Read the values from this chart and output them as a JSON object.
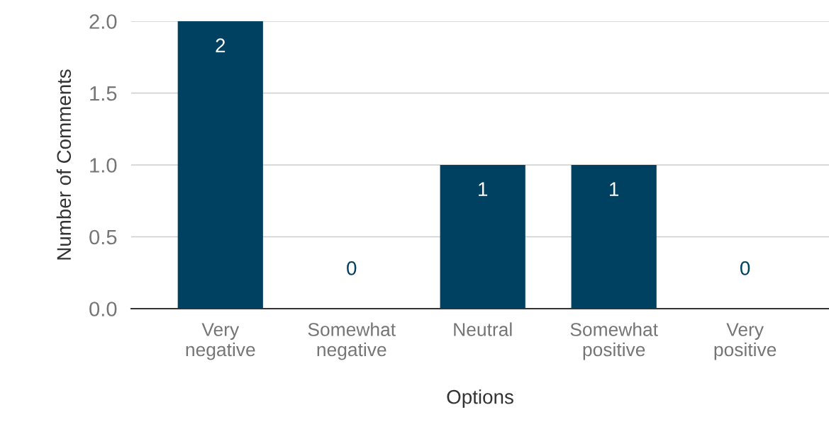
{
  "chart_data": {
    "type": "bar",
    "xlabel": "Options",
    "ylabel": "Number of Comments",
    "categories": [
      "Very negative",
      "Somewhat negative",
      "Neutral",
      "Somewhat positive",
      "Very positive"
    ],
    "values": [
      2,
      0,
      1,
      1,
      0
    ],
    "color": "#004060",
    "ylim": [
      0,
      2
    ],
    "yticks": [
      {
        "value": 0,
        "label": "0.0"
      },
      {
        "value": 0.5,
        "label": "0.5"
      },
      {
        "value": 1,
        "label": "1.0"
      },
      {
        "value": 1.5,
        "label": "1.5"
      },
      {
        "value": 2,
        "label": "2.0"
      }
    ],
    "grid": "y",
    "data_labels": true
  }
}
